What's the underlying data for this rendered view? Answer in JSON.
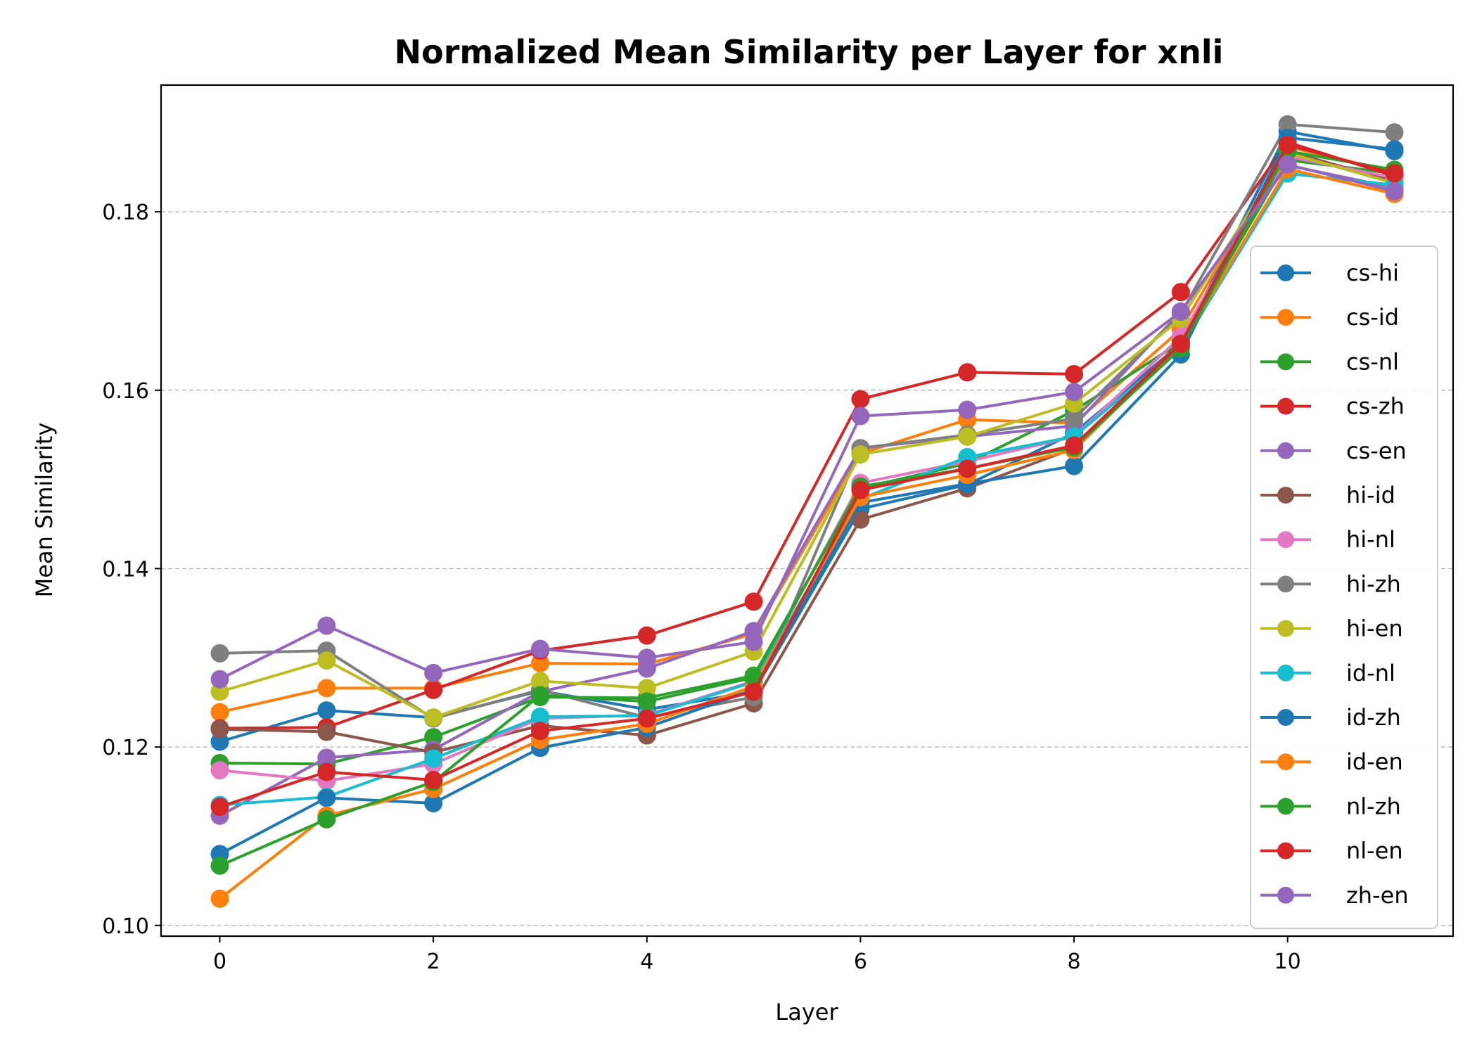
{
  "chart_data": {
    "type": "line",
    "title": "Normalized Mean Similarity per Layer for xnli",
    "xlabel": "Layer",
    "ylabel": "Mean Similarity",
    "xlim": [
      -0.55,
      11.55
    ],
    "ylim": [
      0.0988,
      0.1942
    ],
    "xticks": [
      "0",
      "2",
      "4",
      "6",
      "8",
      "10"
    ],
    "xtick_values": [
      0,
      2,
      4,
      6,
      8,
      10
    ],
    "yticks": [
      "0.10",
      "0.12",
      "0.14",
      "0.16",
      "0.18"
    ],
    "ytick_values": [
      0.1,
      0.12,
      0.14,
      0.16,
      0.18
    ],
    "grid": "horizontal dashed",
    "legend_position": "lower right",
    "x": [
      0,
      1,
      2,
      3,
      4,
      5,
      6,
      7,
      8,
      9,
      10,
      11
    ],
    "series": [
      {
        "name": "cs-hi",
        "color": "#1f77b4",
        "values": [
          0.1206,
          0.1241,
          0.1233,
          0.1263,
          0.1242,
          0.1262,
          0.1467,
          0.1494,
          0.1552,
          0.1652,
          0.189,
          0.1868
        ]
      },
      {
        "name": "cs-id",
        "color": "#ff7f0e",
        "values": [
          0.1239,
          0.1266,
          0.1266,
          0.1294,
          0.1293,
          0.1327,
          0.1529,
          0.1567,
          0.1563,
          0.1668,
          0.1873,
          0.1844
        ]
      },
      {
        "name": "cs-nl",
        "color": "#2ca02c",
        "values": [
          0.1182,
          0.1181,
          0.1211,
          0.1256,
          0.1255,
          0.128,
          0.149,
          0.1518,
          0.1577,
          0.1654,
          0.1858,
          0.1843
        ]
      },
      {
        "name": "cs-zh",
        "color": "#d62728",
        "values": [
          0.1221,
          0.1222,
          0.1264,
          0.1308,
          0.1325,
          0.1363,
          0.159,
          0.162,
          0.1618,
          0.171,
          0.1878,
          0.184
        ]
      },
      {
        "name": "cs-en",
        "color": "#9467bd",
        "values": [
          0.1123,
          0.1188,
          0.1197,
          0.1262,
          0.1288,
          0.133,
          0.1535,
          0.1548,
          0.156,
          0.1688,
          0.1852,
          0.1827
        ]
      },
      {
        "name": "hi-id",
        "color": "#8c564b",
        "values": [
          0.122,
          0.1217,
          0.1194,
          0.1224,
          0.1213,
          0.1249,
          0.1455,
          0.149,
          0.1535,
          0.1655,
          0.1868,
          0.1834
        ]
      },
      {
        "name": "hi-nl",
        "color": "#e377c2",
        "values": [
          0.1174,
          0.1162,
          0.1181,
          0.1232,
          0.1236,
          0.1274,
          0.1496,
          0.152,
          0.1548,
          0.166,
          0.1862,
          0.1838
        ]
      },
      {
        "name": "hi-zh",
        "color": "#7f7f7f",
        "values": [
          0.1305,
          0.1308,
          0.1232,
          0.1264,
          0.1233,
          0.1256,
          0.1535,
          0.155,
          0.1568,
          0.1686,
          0.1898,
          0.1889
        ]
      },
      {
        "name": "hi-en",
        "color": "#bcbd22",
        "values": [
          0.1262,
          0.1297,
          0.1233,
          0.1274,
          0.1266,
          0.1307,
          0.1528,
          0.1548,
          0.1585,
          0.168,
          0.1866,
          0.1832
        ]
      },
      {
        "name": "id-nl",
        "color": "#17becf",
        "values": [
          0.1135,
          0.1144,
          0.1187,
          0.1234,
          0.1235,
          0.1273,
          0.1478,
          0.1525,
          0.1548,
          0.1648,
          0.1843,
          0.183
        ]
      },
      {
        "name": "id-zh",
        "color": "#1f77b4",
        "values": [
          0.108,
          0.1143,
          0.1137,
          0.1199,
          0.1222,
          0.1264,
          0.1474,
          0.1495,
          0.1515,
          0.164,
          0.1883,
          0.187
        ]
      },
      {
        "name": "id-en",
        "color": "#ff7f0e",
        "values": [
          0.103,
          0.1123,
          0.1153,
          0.1208,
          0.1226,
          0.1268,
          0.148,
          0.1505,
          0.1533,
          0.165,
          0.1848,
          0.182
        ]
      },
      {
        "name": "nl-zh",
        "color": "#2ca02c",
        "values": [
          0.1067,
          0.1119,
          0.1161,
          0.1258,
          0.1251,
          0.1278,
          0.1492,
          0.1512,
          0.1536,
          0.1647,
          0.1868,
          0.1847
        ]
      },
      {
        "name": "nl-en",
        "color": "#d62728",
        "values": [
          0.1133,
          0.1172,
          0.1163,
          0.1218,
          0.1232,
          0.1262,
          0.1488,
          0.1512,
          0.1538,
          0.1652,
          0.1875,
          0.1843
        ]
      },
      {
        "name": "zh-en",
        "color": "#9467bd",
        "values": [
          0.1276,
          0.1336,
          0.1283,
          0.131,
          0.13,
          0.1318,
          0.1571,
          0.1578,
          0.1598,
          0.1688,
          0.1853,
          0.1823
        ]
      }
    ]
  }
}
